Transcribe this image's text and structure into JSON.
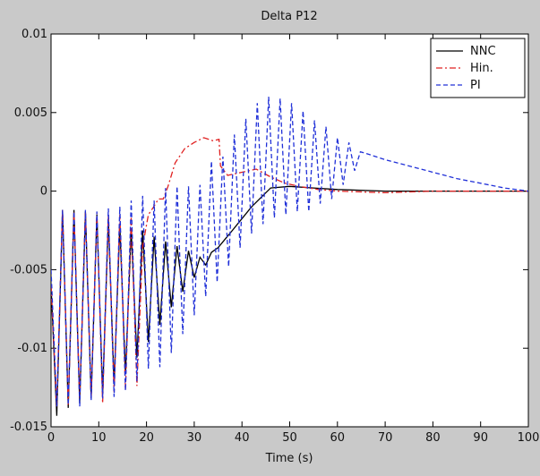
{
  "chart_data": {
    "type": "line",
    "title": "Delta P12",
    "xlabel": "Time (s)",
    "ylabel": "",
    "xlim": [
      0,
      100
    ],
    "ylim": [
      -0.015,
      0.01
    ],
    "xticks": [
      0,
      10,
      20,
      30,
      40,
      50,
      60,
      70,
      80,
      90,
      100
    ],
    "yticks": [
      -0.015,
      -0.01,
      -0.005,
      0,
      0.005,
      0.01
    ],
    "xtick_labels": [
      "0",
      "10",
      "20",
      "30",
      "40",
      "50",
      "60",
      "70",
      "80",
      "90",
      "100"
    ],
    "ytick_labels": [
      "-0.015",
      "-0.01",
      "-0.005",
      "0",
      "0.005",
      "0.01"
    ],
    "grid": false,
    "legend_position": "top-right",
    "series": [
      {
        "name": "NNC",
        "color": "#000000",
        "style": "solid",
        "x": [
          0,
          1.2,
          2.4,
          3.6,
          4.8,
          6.0,
          7.2,
          8.4,
          9.6,
          10.8,
          12.0,
          13.2,
          14.4,
          15.6,
          16.8,
          18.0,
          19.2,
          20.4,
          21.6,
          22.8,
          24.0,
          25.2,
          26.4,
          27.6,
          28.8,
          30.0,
          31.2,
          32.4,
          33.6,
          35,
          38,
          42,
          46,
          50,
          55,
          60,
          70,
          80,
          90,
          100
        ],
        "y": [
          -0.006,
          -0.0143,
          -0.0012,
          -0.0138,
          -0.0012,
          -0.0135,
          -0.0013,
          -0.0132,
          -0.0015,
          -0.0129,
          -0.0018,
          -0.0123,
          -0.0022,
          -0.0116,
          -0.0025,
          -0.0106,
          -0.0025,
          -0.0096,
          -0.0029,
          -0.0085,
          -0.0032,
          -0.0074,
          -0.0035,
          -0.0064,
          -0.0038,
          -0.0055,
          -0.0042,
          -0.0047,
          -0.0039,
          -0.0036,
          -0.0025,
          -0.001,
          0.0002,
          0.0003,
          0.0002,
          0.0001,
          0.0,
          0.0,
          0.0,
          0.0
        ]
      },
      {
        "name": "Hin.",
        "color": "#e02020",
        "style": "dashdot",
        "x": [
          0,
          1.2,
          2.4,
          3.6,
          4.8,
          6.0,
          7.2,
          8.4,
          9.6,
          10.8,
          12.0,
          13.2,
          14.4,
          15.6,
          16.8,
          18.0,
          19.2,
          20.4,
          21.5,
          22.5,
          23.5,
          24.5,
          26,
          28,
          30,
          32,
          34,
          35.2,
          35.5,
          37,
          40,
          43,
          46,
          49,
          52,
          56,
          60,
          70,
          80,
          90,
          100
        ],
        "y": [
          -0.006,
          -0.0137,
          -0.0012,
          -0.0136,
          -0.0013,
          -0.0132,
          -0.0014,
          -0.0131,
          -0.0014,
          -0.0135,
          -0.0015,
          -0.0128,
          -0.0015,
          -0.0126,
          -0.0017,
          -0.0124,
          -0.0035,
          -0.0015,
          -0.001,
          -0.0005,
          -0.0005,
          0.0003,
          0.0018,
          0.0027,
          0.0031,
          0.0034,
          0.0032,
          0.0033,
          0.0016,
          0.001,
          0.0012,
          0.0014,
          0.0009,
          0.0005,
          0.0003,
          0.0001,
          0.0,
          -0.0001,
          0.0,
          0.0,
          0.0
        ]
      },
      {
        "name": "PI",
        "color": "#2030d8",
        "style": "dashed",
        "x": [
          0,
          1.2,
          2.4,
          3.6,
          4.8,
          6.0,
          7.2,
          8.4,
          9.6,
          10.8,
          12.0,
          13.2,
          14.4,
          15.6,
          16.8,
          18.0,
          19.2,
          20.4,
          21.6,
          22.8,
          24.0,
          25.2,
          26.4,
          27.6,
          28.8,
          30.0,
          31.2,
          32.4,
          33.6,
          34.8,
          36.0,
          37.2,
          38.4,
          39.6,
          40.8,
          42.0,
          43.2,
          44.4,
          45.6,
          46.8,
          48.0,
          49.2,
          50.4,
          51.6,
          52.8,
          54.0,
          55.2,
          56.4,
          57.6,
          58.8,
          60.0,
          61.2,
          62.4,
          63.6,
          64.8,
          66,
          70,
          75,
          80,
          85,
          90,
          95,
          100
        ],
        "y": [
          -0.005,
          -0.0137,
          -0.0012,
          -0.0136,
          -0.0013,
          -0.0137,
          -0.0012,
          -0.0133,
          -0.0013,
          -0.0132,
          -0.0011,
          -0.0131,
          -0.001,
          -0.0127,
          -0.0006,
          -0.0121,
          -0.0003,
          -0.0113,
          -0.0006,
          -0.0112,
          0.0002,
          -0.0103,
          0.0003,
          -0.0091,
          0.0003,
          -0.0079,
          0.0004,
          -0.0067,
          0.0019,
          -0.0058,
          0.0022,
          -0.0048,
          0.0036,
          -0.0036,
          0.0046,
          -0.0027,
          0.0056,
          -0.0021,
          0.006,
          -0.0017,
          0.0059,
          -0.0015,
          0.0056,
          -0.0013,
          0.0051,
          -0.0013,
          0.0045,
          -0.0008,
          0.0041,
          -0.0005,
          0.0034,
          0.0004,
          0.0031,
          0.0013,
          0.0025,
          0.0024,
          0.002,
          0.0016,
          0.0012,
          0.0008,
          0.0005,
          0.0002,
          0.0
        ]
      }
    ]
  }
}
